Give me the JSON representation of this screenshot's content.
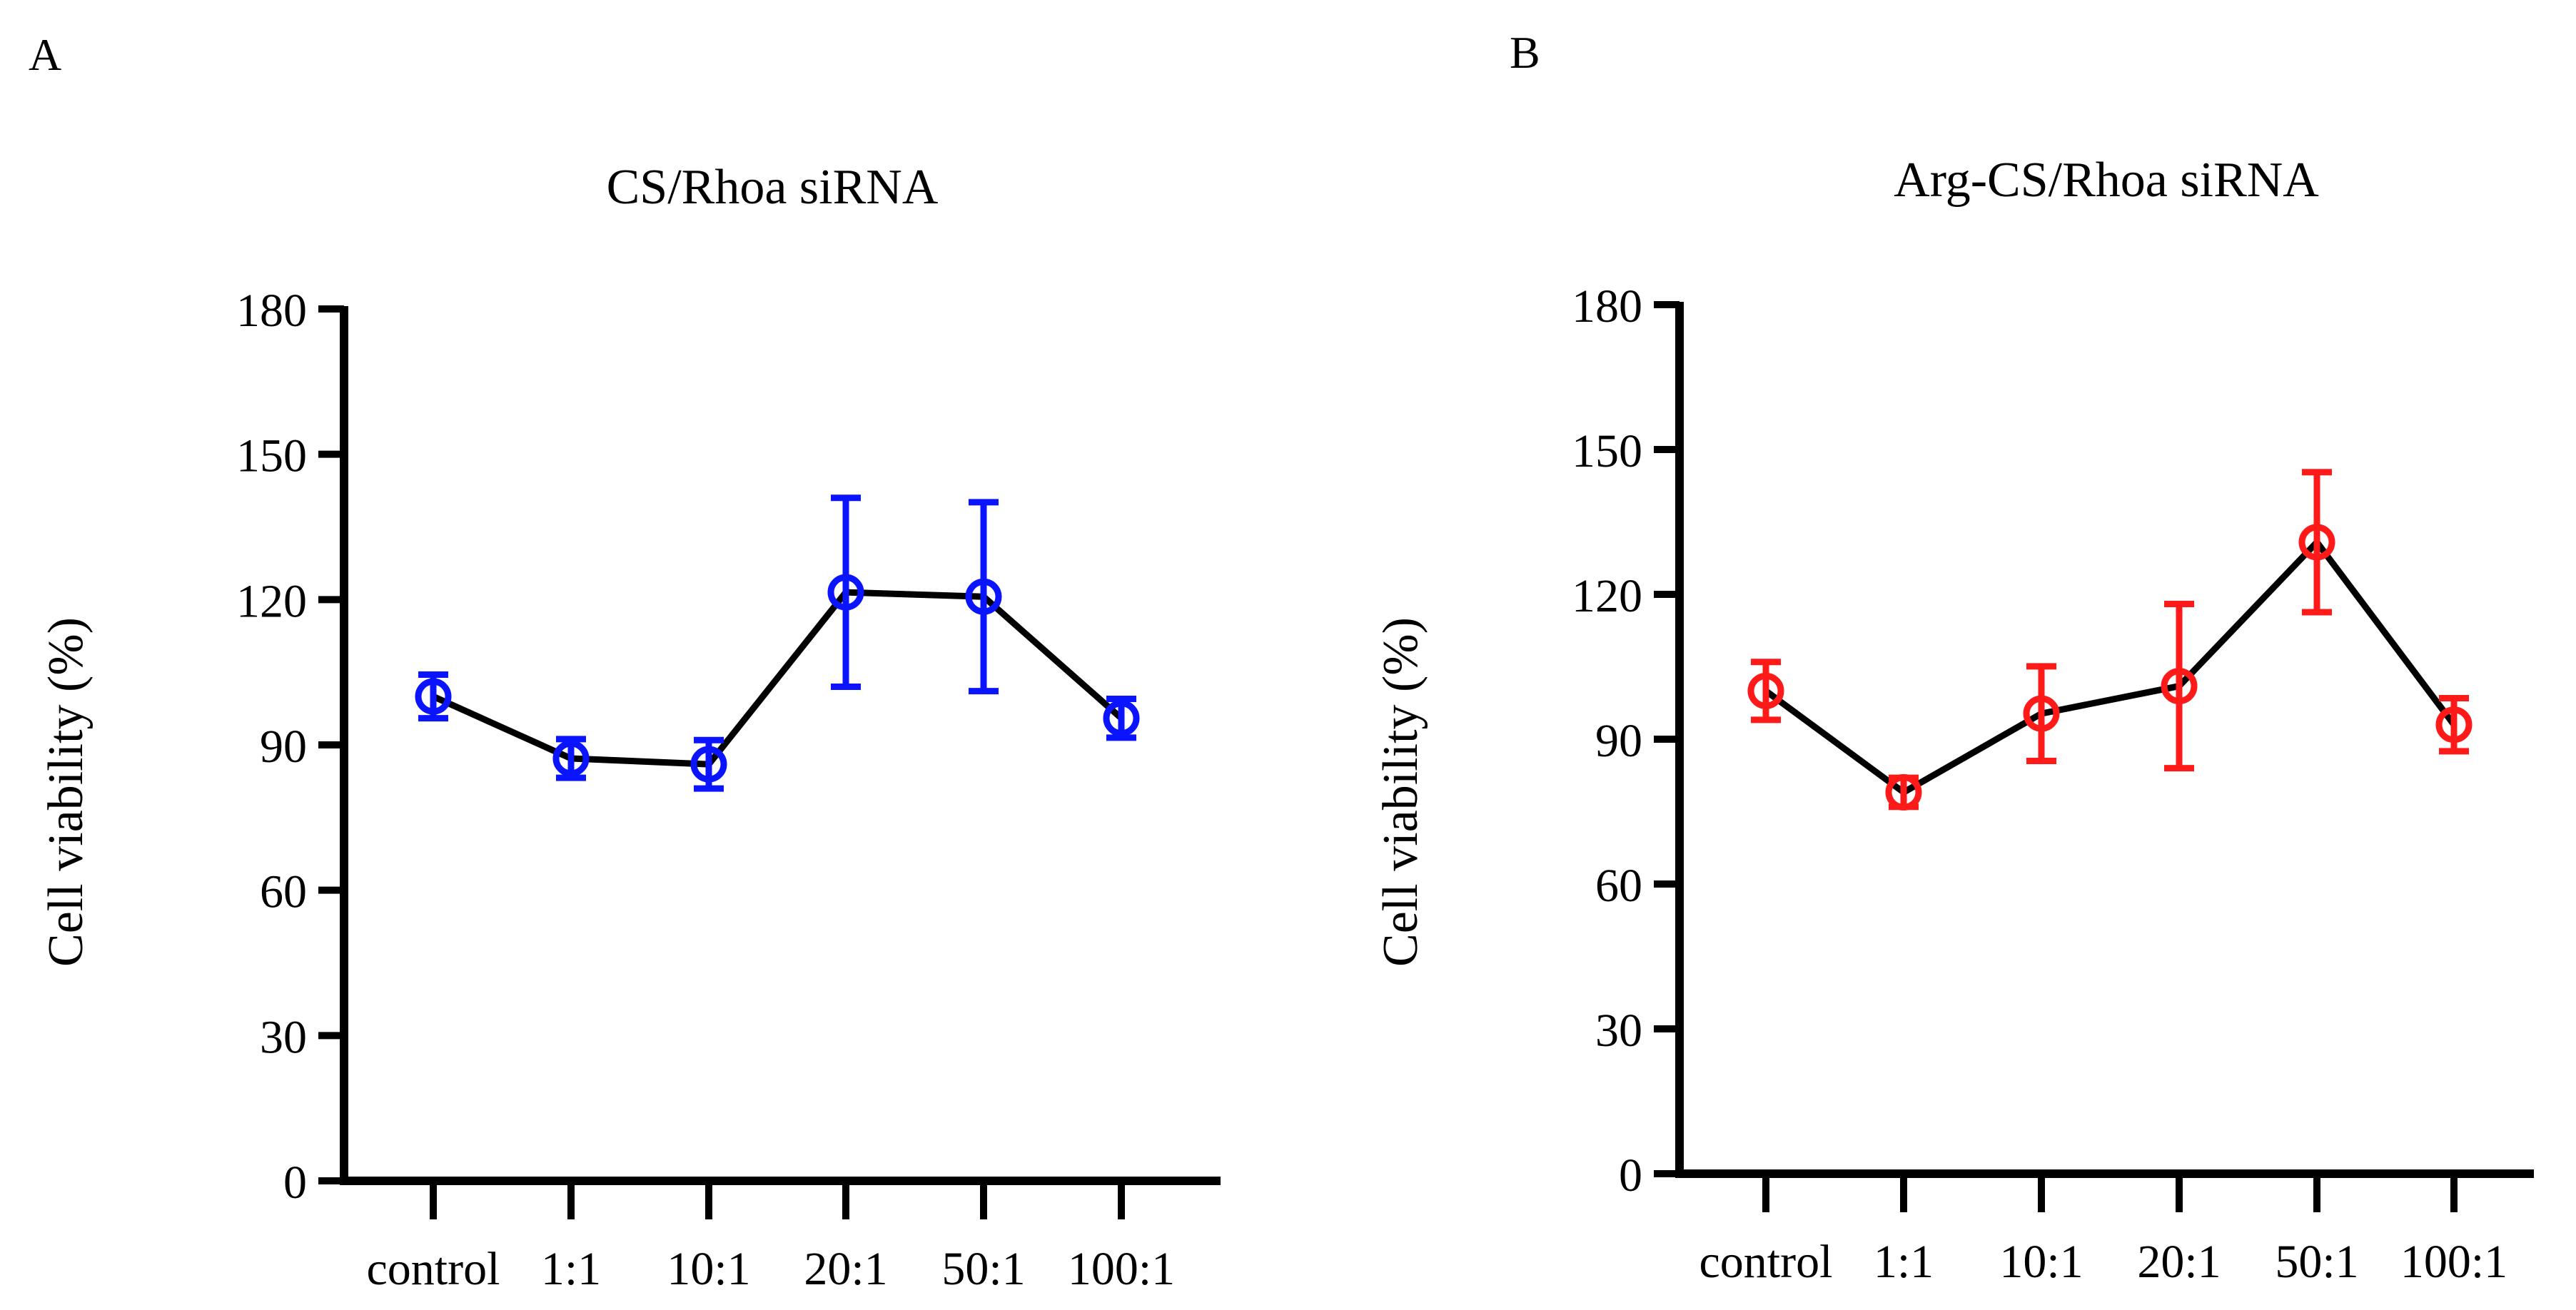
{
  "chart_data": [
    {
      "type": "line",
      "panel_label": "A",
      "title": "CS/Rhoa siRNA",
      "xlabel": "",
      "ylabel": "Cell viability (%)",
      "ylim": [
        0,
        180
      ],
      "yticks": [
        0,
        30,
        60,
        90,
        120,
        150,
        180
      ],
      "categories": [
        "control",
        "1:1",
        "10:1",
        "20:1",
        "50:1",
        "100:1"
      ],
      "series": [
        {
          "name": "CS/Rhoa siRNA",
          "values": [
            100.0,
            87.2,
            86.0,
            121.5,
            120.6,
            95.5
          ],
          "errors": [
            4.5,
            4.0,
            5.0,
            19.5,
            19.5,
            4.0
          ],
          "marker_color": "#0a14ff",
          "line_color": "#000000"
        }
      ],
      "grid": false,
      "legend": "none"
    },
    {
      "type": "line",
      "panel_label": "B",
      "title": "Arg-CS/Rhoa siRNA",
      "xlabel": "",
      "ylabel": "Cell viability (%)",
      "ylim": [
        0,
        180
      ],
      "yticks": [
        0,
        30,
        60,
        90,
        120,
        150,
        180
      ],
      "categories": [
        "control",
        "1:1",
        "10:1",
        "20:1",
        "50:1",
        "100:1"
      ],
      "series": [
        {
          "name": "Arg-CS/Rhoa siRNA",
          "values": [
            100.0,
            79.0,
            95.3,
            101.0,
            130.8,
            93.0
          ],
          "errors": [
            6.0,
            3.0,
            9.8,
            17.0,
            14.5,
            5.5
          ],
          "marker_color": "#ff1a1a",
          "line_color": "#000000"
        }
      ],
      "grid": false,
      "legend": "none"
    }
  ]
}
